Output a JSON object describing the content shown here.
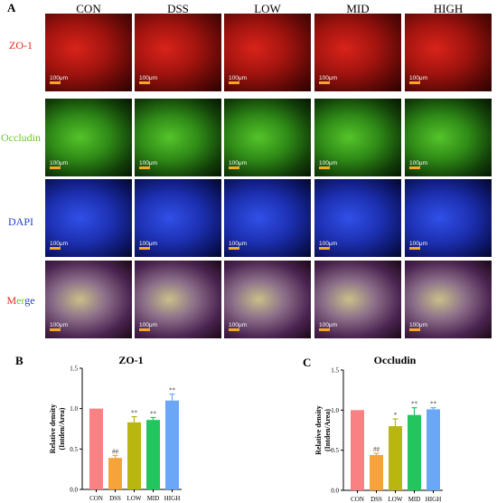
{
  "figure": {
    "panel_a_label": "A",
    "columns": [
      "CON",
      "DSS",
      "LOW",
      "MID",
      "HIGH"
    ],
    "rows": [
      {
        "label": "ZO-1",
        "color": "#e8261c",
        "stain": "red"
      },
      {
        "label": "Occludin",
        "color": "#6cc92a",
        "stain": "green"
      },
      {
        "label": "DAPI",
        "color": "#2340d8",
        "stain": "blue"
      },
      {
        "label_parts": [
          "M",
          "er",
          "ge"
        ],
        "stain": "merge"
      }
    ],
    "scale_bar_label": "100μm"
  },
  "chart_data": [
    {
      "panel": "B",
      "type": "bar",
      "title": "ZO-1",
      "ylabel": "Relative density (Intden/Area)",
      "ylabel_lines": [
        "Relative density",
        "(Intden/Area)"
      ],
      "xlabel": "",
      "ylim": [
        0,
        1.5
      ],
      "yticks": [
        "0.0",
        "0.5",
        "1.0",
        "1.5"
      ],
      "categories": [
        "CON",
        "DSS",
        "LOW",
        "MID",
        "HIGH"
      ],
      "values": [
        1.0,
        0.39,
        0.83,
        0.86,
        1.1
      ],
      "errors": [
        0,
        0.03,
        0.07,
        0.03,
        0.08
      ],
      "annotations": [
        "",
        "##",
        "**",
        "**",
        "**"
      ],
      "colors": [
        "#f98183",
        "#f5a33a",
        "#b8b60f",
        "#22c55e",
        "#6aa8f7"
      ]
    },
    {
      "panel": "C",
      "type": "bar",
      "title": "Occludin",
      "ylabel": "Relative density (Intden/Area)",
      "ylabel_lines": [
        "Relative density",
        "(Intden/Area)"
      ],
      "xlabel": "",
      "ylim": [
        0,
        1.5
      ],
      "yticks": [
        "0.0",
        "0.5",
        "1.0",
        "1.5"
      ],
      "categories": [
        "CON",
        "DSS",
        "LOW",
        "MID",
        "HIGH"
      ],
      "values": [
        1.0,
        0.44,
        0.8,
        0.94,
        1.01
      ],
      "errors": [
        0,
        0.02,
        0.09,
        0.09,
        0.02
      ],
      "annotations": [
        "",
        "##",
        "*",
        "**",
        "**"
      ],
      "colors": [
        "#f98183",
        "#f5a33a",
        "#b8b60f",
        "#22c55e",
        "#6aa8f7"
      ]
    }
  ]
}
